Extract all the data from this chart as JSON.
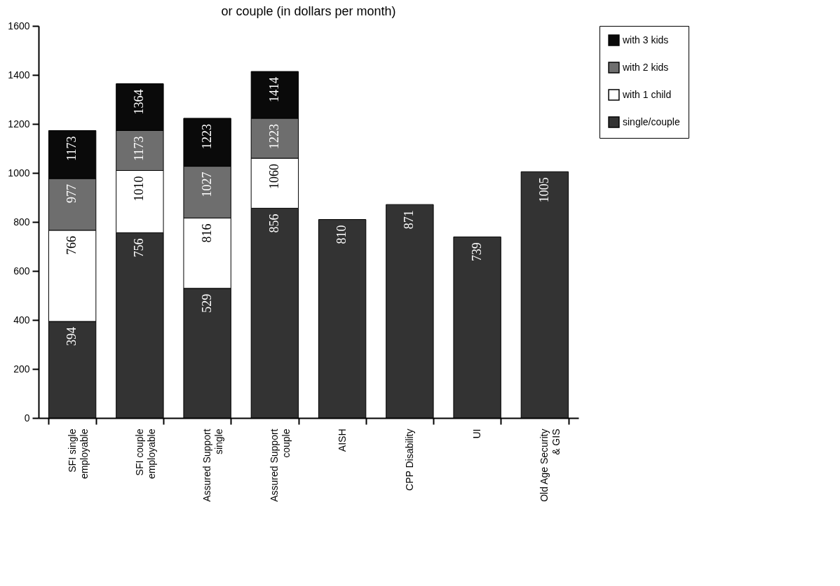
{
  "chart_data": {
    "type": "bar",
    "stacked": true,
    "title": "or couple (in dollars per month)",
    "categories": [
      "SFI single\nemployable",
      "SFI couple\nemployable",
      "Assured Support\nsingle",
      "Assured Support\ncouple",
      "AISH",
      "CPP Disability",
      "UI",
      "Old Age Security\n& GIS"
    ],
    "series": [
      {
        "name": "single/couple",
        "color": "#333333",
        "values": [
          394,
          756,
          529,
          856,
          810,
          871,
          739,
          1005
        ]
      },
      {
        "name": "with 1 child",
        "color": "#ffffff",
        "values": [
          372,
          254,
          287,
          204,
          null,
          null,
          null,
          null
        ]
      },
      {
        "name": "with 2 kids",
        "color": "#6e6e6e",
        "values": [
          211,
          163,
          211,
          163,
          null,
          null,
          null,
          null
        ]
      },
      {
        "name": "with 3 kids",
        "color": "#0a0a0a",
        "values": [
          196,
          191,
          196,
          191,
          null,
          null,
          null,
          null
        ]
      }
    ],
    "annotations": [
      {
        "text": "394",
        "x": "SFI single\nemployable",
        "y": 394
      },
      {
        "text": "766",
        "x": "SFI single\nemployable",
        "y": 766
      },
      {
        "text": "977",
        "x": "SFI single\nemployable",
        "y": 977
      },
      {
        "text": "1173",
        "x": "SFI single\nemployable",
        "y": 1173
      },
      {
        "text": "756",
        "x": "SFI couple\nemployable",
        "y": 756
      },
      {
        "text": "1010",
        "x": "SFI couple\nemployable",
        "y": 1010
      },
      {
        "text": "1173",
        "x": "SFI couple\nemployable",
        "y": 1173
      },
      {
        "text": "1364",
        "x": "SFI couple\nemployable",
        "y": 1364
      },
      {
        "text": "529",
        "x": "Assured Support\nsingle",
        "y": 529
      },
      {
        "text": "816",
        "x": "Assured Support\nsingle",
        "y": 816
      },
      {
        "text": "1027",
        "x": "Assured Support\nsingle",
        "y": 1027
      },
      {
        "text": "1223",
        "x": "Assured Support\nsingle",
        "y": 1223
      },
      {
        "text": "856",
        "x": "Assured Support\ncouple",
        "y": 856
      },
      {
        "text": "1060",
        "x": "Assured Support\ncouple",
        "y": 1060
      },
      {
        "text": "1223",
        "x": "Assured Support\ncouple",
        "y": 1223
      },
      {
        "text": "1414",
        "x": "Assured Support\ncouple",
        "y": 1414
      },
      {
        "text": "810",
        "x": "AISH",
        "y": 810
      },
      {
        "text": "871",
        "x": "CPP Disability",
        "y": 871
      },
      {
        "text": "739",
        "x": "UI",
        "y": 739
      },
      {
        "text": "1005",
        "x": "Old Age Security\n& GIS",
        "y": 1005
      }
    ],
    "ylim": [
      0,
      1600
    ],
    "yticks": [
      0,
      200,
      400,
      600,
      800,
      1000,
      1200,
      1400,
      1600
    ],
    "grid": false,
    "legend": "right"
  }
}
